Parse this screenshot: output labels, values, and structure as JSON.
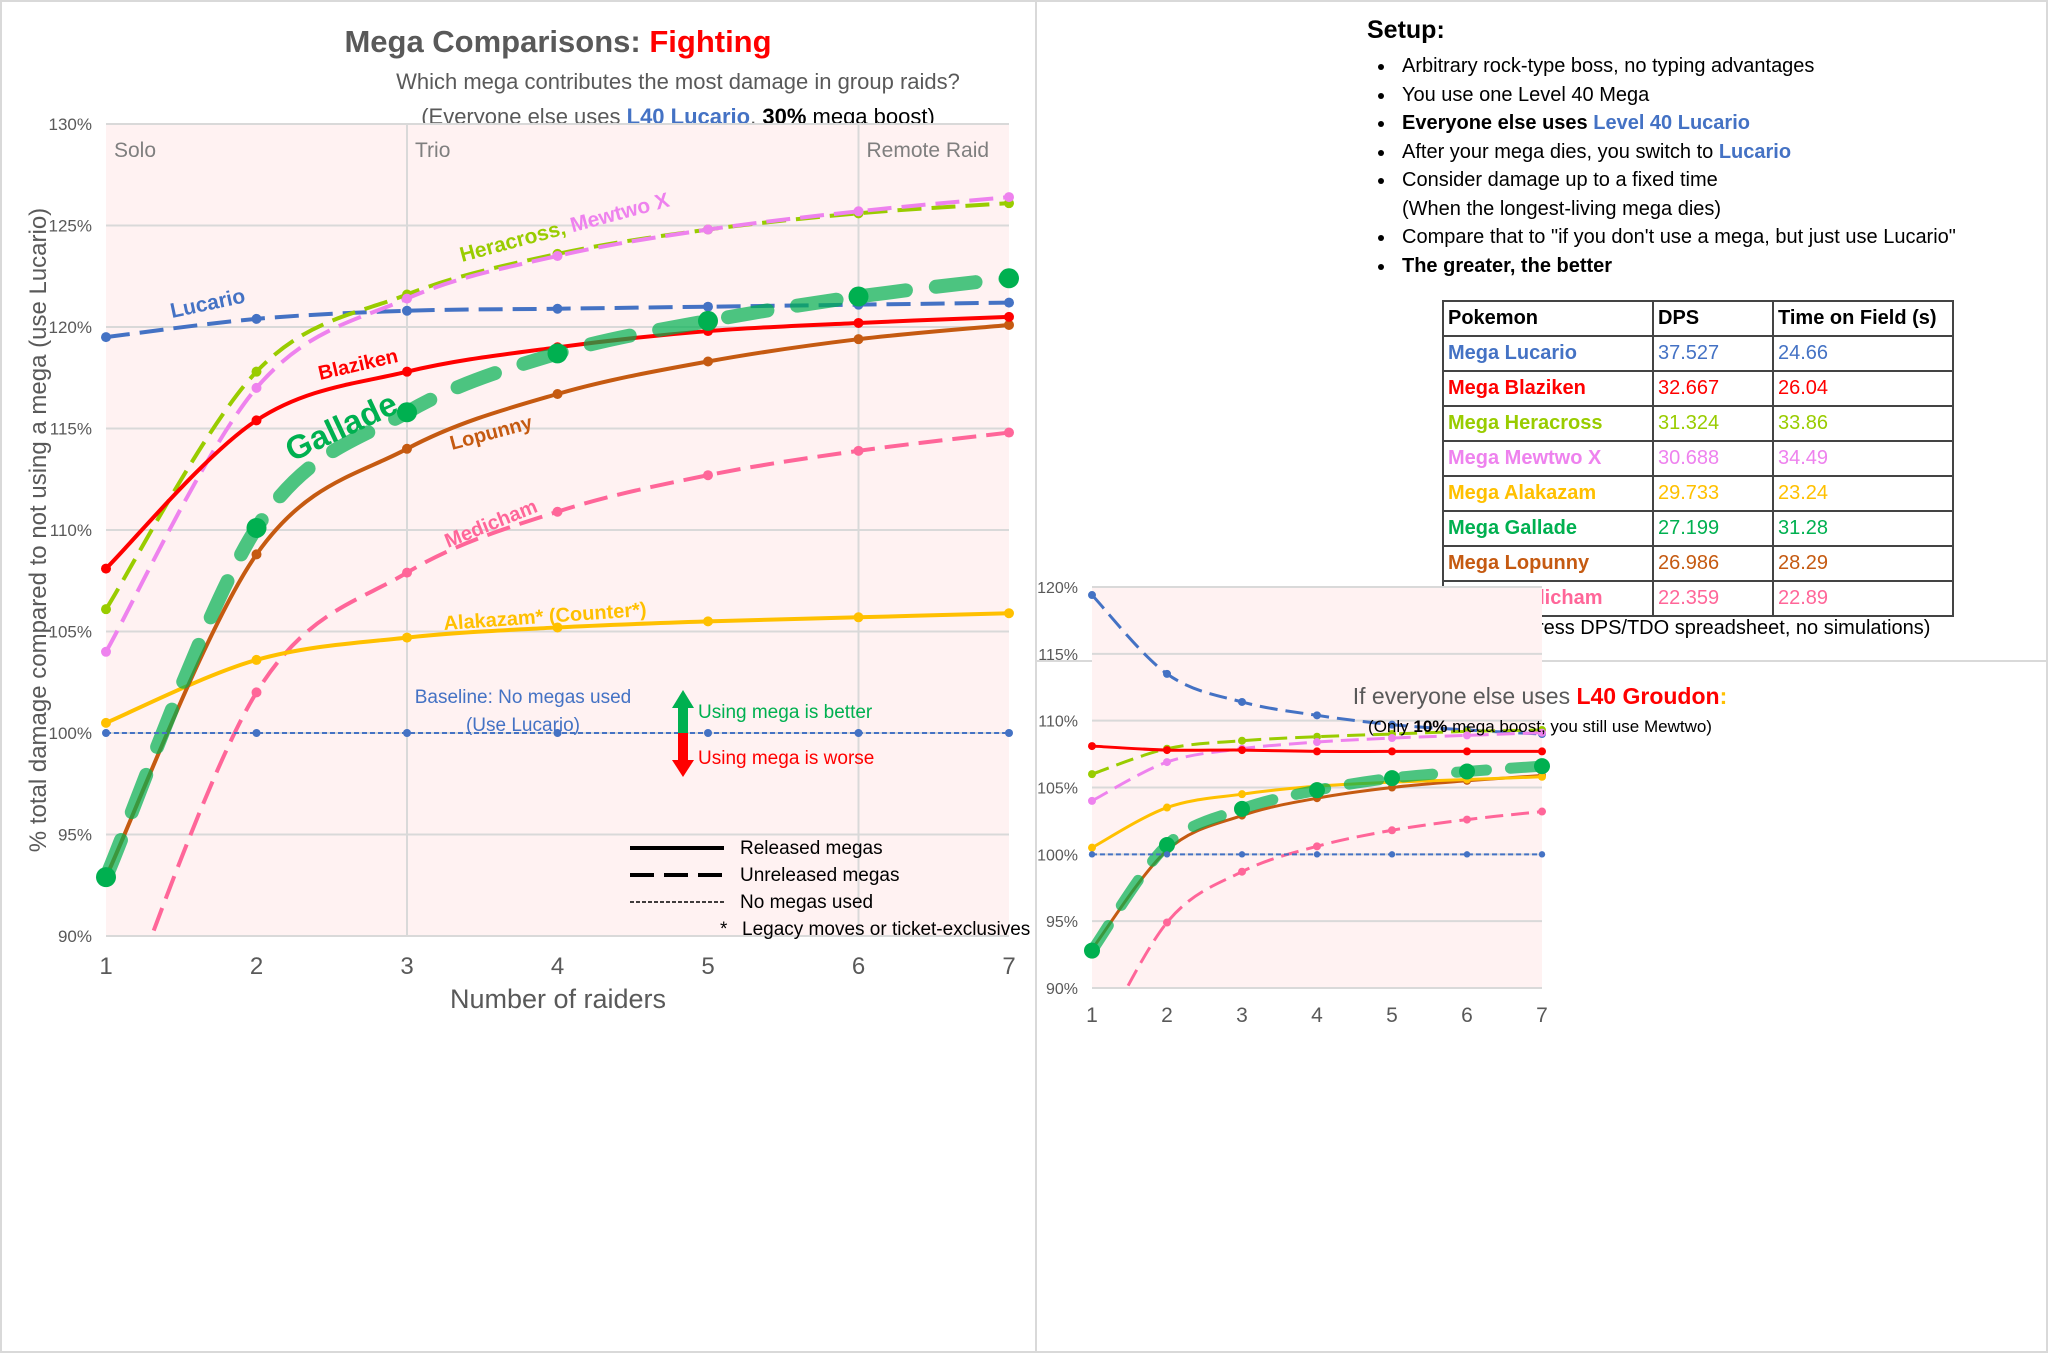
{
  "main_chart_header": {
    "title_prefix": "Mega Comparisons: ",
    "title_highlight": "Fighting",
    "subtitle": "Which mega contributes the most damage in group raids?",
    "subtitle2_prefix": "(Everyone else uses ",
    "subtitle2_blue": "L40 Lucario",
    "subtitle2_mid": ", ",
    "subtitle2_bold": "30%",
    "subtitle2_suffix": " mega boost)"
  },
  "inset_chart_header": {
    "title_prefix": "If everyone else uses ",
    "title_highlight": "L40 Groudon",
    "title_suffix": ":",
    "subtitle_prefix": "(Only ",
    "subtitle_bold": "10%",
    "subtitle_suffix": " mega boost; you still use Mewtwo)"
  },
  "setup": {
    "heading": "Setup:",
    "items": [
      {
        "text": "Arbitrary rock-type boss, no typing advantages"
      },
      {
        "text": "You use one Level 40 Mega"
      },
      {
        "bold": "Everyone else uses ",
        "blue": "Level 40 Lucario"
      },
      {
        "text": "After your mega dies, you switch to ",
        "blue": "Lucario"
      },
      {
        "text": "Consider damage up to a fixed time",
        "text2": "(When the longest-living mega dies)"
      },
      {
        "text": "Compare that to \"if you don't use a mega, but just use Lucario\""
      },
      {
        "bold": "The greater, the better"
      }
    ],
    "table": {
      "headers": [
        "Pokemon",
        "DPS",
        "Time on Field (s)"
      ],
      "rows": [
        {
          "name": "Mega Lucario",
          "dps": "37.527",
          "tof": "24.66",
          "color": "#4472C4"
        },
        {
          "name": "Mega Blaziken",
          "dps": "32.667",
          "tof": "26.04",
          "color": "#FF0000"
        },
        {
          "name": "Mega Heracross",
          "dps": "31.324",
          "tof": "33.86",
          "color": "#99CC00"
        },
        {
          "name": "Mega Mewtwo X",
          "dps": "30.688",
          "tof": "34.49",
          "color": "#EE82EE"
        },
        {
          "name": "Mega Alakazam",
          "dps": "29.733",
          "tof": "23.24",
          "color": "#FFC000"
        },
        {
          "name": "Mega Gallade",
          "dps": "27.199",
          "tof": "31.28",
          "color": "#00B050"
        },
        {
          "name": "Mega Lopunny",
          "dps": "26.986",
          "tof": "28.29",
          "color": "#C55A11"
        },
        {
          "name": "Mega Medicham",
          "dps": "22.359",
          "tof": "22.89",
          "color": "#FF6699"
        }
      ]
    },
    "footnote": "(Only uses GamePress DPS/TDO spreadsheet, no simulations)"
  },
  "chart_data": [
    {
      "type": "line",
      "title": "Mega Comparisons: Fighting",
      "subtitle": "Which mega contributes the most damage in group raids? (Everyone else uses L40 Lucario, 30% mega boost)",
      "xlabel": "Number of raiders",
      "ylabel": "% total damage compared to not using a mega (use Lucario)",
      "x": [
        1,
        2,
        3,
        4,
        5,
        6,
        7
      ],
      "xlim": [
        1,
        7
      ],
      "ylim": [
        90,
        130
      ],
      "yticks": [
        90,
        95,
        100,
        105,
        110,
        115,
        120,
        125,
        130
      ],
      "ytick_labels": [
        "90%",
        "95%",
        "100%",
        "105%",
        "110%",
        "115%",
        "120%",
        "125%",
        "130%"
      ],
      "xtick_labels": [
        "1",
        "2",
        "3",
        "4",
        "5",
        "6",
        "7"
      ],
      "grid": true,
      "background": "#FFF2F2",
      "regions": [
        {
          "x": 1,
          "label": "Solo"
        },
        {
          "x": 3,
          "label": "Trio"
        },
        {
          "x": 6,
          "label": "Remote Raid"
        }
      ],
      "series": [
        {
          "key": "lucario",
          "color": "#4472C4",
          "style": "dashed",
          "values": [
            119.5,
            120.4,
            120.8,
            120.9,
            121.0,
            121.1,
            121.2
          ]
        },
        {
          "key": "heracross",
          "color": "#99CC00",
          "style": "dashed",
          "values": [
            106.1,
            117.8,
            121.6,
            123.6,
            124.8,
            125.6,
            126.1
          ]
        },
        {
          "key": "mewtwo",
          "color": "#EE82EE",
          "style": "dashed",
          "values": [
            104.0,
            117.0,
            121.4,
            123.5,
            124.8,
            125.7,
            126.4
          ]
        },
        {
          "key": "medicham",
          "color": "#FF6699",
          "style": "dashed",
          "values": [
            84.0,
            102.0,
            107.9,
            110.9,
            112.7,
            113.9,
            114.8
          ]
        },
        {
          "key": "alakazam",
          "color": "#FFC000",
          "style": "solid",
          "values": [
            100.5,
            103.6,
            104.7,
            105.2,
            105.5,
            105.7,
            105.9
          ]
        },
        {
          "key": "lopunny",
          "color": "#C55A11",
          "style": "solid",
          "values": [
            92.9,
            108.8,
            114.0,
            116.7,
            118.3,
            119.4,
            120.1
          ]
        },
        {
          "key": "blaziken",
          "color": "#FF0000",
          "style": "solid",
          "values": [
            108.1,
            115.4,
            117.8,
            119.0,
            119.8,
            120.2,
            120.5
          ]
        },
        {
          "key": "gallade",
          "color": "#00B050",
          "style": "thick-dashed",
          "values": [
            92.9,
            110.1,
            115.8,
            118.7,
            120.3,
            121.5,
            122.4
          ]
        },
        {
          "key": "baseline",
          "color": "#4472C4",
          "style": "dotted",
          "values": [
            100,
            100,
            100,
            100,
            100,
            100,
            100
          ]
        }
      ],
      "annotations": {
        "lucario": "Lucario",
        "heracross": "Heracross, ",
        "mewtwo": "Mewtwo X",
        "blaziken": "Blaziken",
        "gallade": "Gallade",
        "lopunny": "Lopunny",
        "medicham": "Medicham",
        "alakazam": "Alakazam* (Counter*)",
        "baseline_line1": "Baseline: No megas used",
        "baseline_line2": "(Use Lucario)",
        "better": "Using mega is better",
        "worse": "Using mega is worse",
        "better_color": "#00B050",
        "worse_color": "#FF0000"
      },
      "legend": {
        "placement": "bottom-right",
        "entries": [
          {
            "style": "solid",
            "label": "Released megas"
          },
          {
            "style": "dashed",
            "label": "Unreleased megas"
          },
          {
            "style": "dotted",
            "label": "No megas used"
          },
          {
            "style": "asterisk",
            "symbol": "*",
            "label": "Legacy moves or ticket-exclusives"
          }
        ]
      }
    },
    {
      "type": "line",
      "title": "If everyone else uses L40 Groudon:",
      "subtitle": "(Only 10% mega boost; you still use Mewtwo)",
      "x": [
        1,
        2,
        3,
        4,
        5,
        6,
        7
      ],
      "xlim": [
        1,
        7
      ],
      "ylim": [
        90,
        120
      ],
      "yticks": [
        90,
        95,
        100,
        105,
        110,
        115,
        120
      ],
      "ytick_labels": [
        "90%",
        "95%",
        "100%",
        "105%",
        "110%",
        "115%",
        "120%"
      ],
      "xtick_labels": [
        "1",
        "2",
        "3",
        "4",
        "5",
        "6",
        "7"
      ],
      "grid": true,
      "background": "#FFF2F2",
      "series": [
        {
          "key": "lucario",
          "color": "#4472C4",
          "style": "dashed",
          "values": [
            119.4,
            113.5,
            111.4,
            110.4,
            109.7,
            109.3,
            109.0
          ]
        },
        {
          "key": "heracross",
          "color": "#99CC00",
          "style": "dashed",
          "values": [
            106.0,
            107.9,
            108.5,
            108.8,
            109.0,
            109.2,
            109.3
          ]
        },
        {
          "key": "mewtwo",
          "color": "#EE82EE",
          "style": "dashed",
          "values": [
            104.0,
            106.9,
            107.9,
            108.4,
            108.7,
            108.9,
            109.1
          ]
        },
        {
          "key": "medicham",
          "color": "#FF6699",
          "style": "dashed",
          "values": [
            85.0,
            94.9,
            98.7,
            100.6,
            101.8,
            102.6,
            103.2
          ]
        },
        {
          "key": "lopunny",
          "color": "#C55A11",
          "style": "solid",
          "values": [
            92.9,
            100.3,
            102.9,
            104.2,
            105.0,
            105.5,
            105.9
          ]
        },
        {
          "key": "alakazam",
          "color": "#FFC000",
          "style": "solid",
          "values": [
            100.5,
            103.5,
            104.5,
            105.1,
            105.4,
            105.6,
            105.8
          ]
        },
        {
          "key": "blaziken",
          "color": "#FF0000",
          "style": "solid",
          "values": [
            108.1,
            107.8,
            107.8,
            107.7,
            107.7,
            107.7,
            107.7
          ]
        },
        {
          "key": "gallade",
          "color": "#00B050",
          "style": "thick-dashed",
          "values": [
            92.8,
            100.7,
            103.4,
            104.8,
            105.7,
            106.2,
            106.6
          ]
        },
        {
          "key": "baseline",
          "color": "#4472C4",
          "style": "dotted",
          "values": [
            100,
            100,
            100,
            100,
            100,
            100,
            100
          ]
        }
      ]
    }
  ]
}
